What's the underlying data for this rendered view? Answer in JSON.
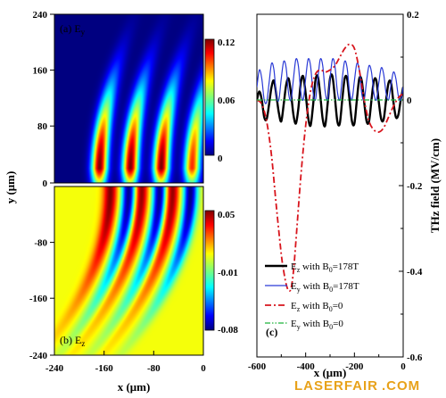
{
  "chart_data": [
    {
      "type": "heatmap",
      "label": "(a) E",
      "label_sub": "y",
      "xlim": [
        -240,
        0
      ],
      "ylim": [
        0,
        240
      ],
      "x_ticks": [
        "-240",
        "-160",
        "-80",
        "0"
      ],
      "y_ticks": [
        "240",
        "160",
        "80",
        "0"
      ],
      "colorbar_range": [
        0,
        0.12
      ],
      "colorbar_ticks": [
        "0.12",
        "0.06",
        "0"
      ],
      "colormap": "jet",
      "fringes": [
        {
          "x_center": -168,
          "peak_y": 20,
          "max": 0.12
        },
        {
          "x_center": -118,
          "peak_y": 20,
          "max": 0.12
        },
        {
          "x_center": -68,
          "peak_y": 20,
          "max": 0.12
        },
        {
          "x_center": -18,
          "peak_y": 20,
          "max": 0.1
        }
      ]
    },
    {
      "type": "heatmap",
      "label": "(b) E",
      "label_sub": "z",
      "xlim": [
        -240,
        0
      ],
      "ylim": [
        -240,
        0
      ],
      "x_ticks": [
        "-240",
        "-160",
        "-80",
        "0"
      ],
      "y_ticks": [
        "-80",
        "-160",
        "-240"
      ],
      "colorbar_range": [
        -0.08,
        0.05
      ],
      "colorbar_ticks": [
        "0.05",
        "-0.01",
        "-0.08"
      ],
      "colormap": "jet",
      "fringes": [
        {
          "x_center": -150,
          "sign": 1,
          "max": 0.05
        },
        {
          "x_center": -120,
          "sign": -1,
          "max": 0.08
        },
        {
          "x_center": -100,
          "sign": 1,
          "max": 0.05
        },
        {
          "x_center": -70,
          "sign": -1,
          "max": 0.08
        },
        {
          "x_center": -50,
          "sign": 1,
          "max": 0.05
        },
        {
          "x_center": -20,
          "sign": -1,
          "max": 0.08
        }
      ]
    },
    {
      "type": "line",
      "label": "(c)",
      "xlim": [
        -600,
        0
      ],
      "ylim": [
        -0.6,
        0.2
      ],
      "x_ticks": [
        "-600",
        "-400",
        "-200",
        "0"
      ],
      "y_ticks": [
        "0.2",
        "0",
        "-0.2",
        "-0.4",
        "-0.6"
      ],
      "series": [
        {
          "name": "E_z with B_0=178T",
          "legend": {
            "main": "E",
            "sub": "z",
            "mid": " with B",
            "sub2": "0",
            "tail": "=178T"
          },
          "color": "#000000",
          "style": "solid",
          "width": 2.4,
          "x": [
            -600,
            -590,
            -580,
            -570,
            -560,
            -550,
            -540,
            -530,
            -520,
            -510,
            -500,
            -490,
            -480,
            -470,
            -460,
            -450,
            -440,
            -430,
            -420,
            -410,
            -400,
            -390,
            -380,
            -370,
            -360,
            -350,
            -340,
            -330,
            -320,
            -310,
            -300,
            -290,
            -280,
            -270,
            -260,
            -250,
            -240,
            -230,
            -220,
            -210,
            -200,
            -190,
            -180,
            -170,
            -160,
            -150,
            -140,
            -130,
            -120,
            -110,
            -100,
            -90,
            -80,
            -70,
            -60,
            -50,
            -40,
            -30,
            -20,
            -10,
            0
          ],
          "y": [
            0.0,
            0.02,
            0.0,
            -0.04,
            -0.045,
            -0.01,
            0.03,
            0.045,
            0.01,
            -0.03,
            -0.05,
            -0.01,
            0.035,
            0.05,
            0.015,
            -0.035,
            -0.055,
            -0.02,
            0.04,
            0.055,
            0.015,
            -0.04,
            -0.06,
            -0.015,
            0.045,
            0.055,
            0.01,
            -0.045,
            -0.06,
            -0.01,
            0.05,
            0.055,
            0.005,
            -0.05,
            -0.055,
            0.0,
            0.05,
            0.05,
            0.0,
            -0.05,
            -0.055,
            0.0,
            0.05,
            0.045,
            -0.005,
            -0.05,
            -0.05,
            0.0,
            0.045,
            0.045,
            -0.005,
            -0.045,
            -0.045,
            0.0,
            0.04,
            0.04,
            -0.005,
            -0.04,
            -0.035,
            0.0,
            0.03
          ]
        },
        {
          "name": "E_y with B_0=178T",
          "legend": {
            "main": "E",
            "sub": "y",
            "mid": " with B",
            "sub2": "0",
            "tail": "=178T"
          },
          "color": "#2a3ad6",
          "style": "solid",
          "width": 1.2,
          "x": [
            -600,
            -590,
            -580,
            -570,
            -560,
            -550,
            -540,
            -530,
            -520,
            -510,
            -500,
            -490,
            -480,
            -470,
            -460,
            -450,
            -440,
            -430,
            -420,
            -410,
            -400,
            -390,
            -380,
            -370,
            -360,
            -350,
            -340,
            -330,
            -320,
            -310,
            -300,
            -290,
            -280,
            -270,
            -260,
            -250,
            -240,
            -230,
            -220,
            -210,
            -200,
            -190,
            -180,
            -170,
            -160,
            -150,
            -140,
            -130,
            -120,
            -110,
            -100,
            -90,
            -80,
            -70,
            -60,
            -50,
            -40,
            -30,
            -20,
            -10,
            0
          ],
          "y": [
            0.03,
            0.07,
            0.05,
            0.0,
            -0.005,
            0.04,
            0.085,
            0.07,
            0.01,
            0.0,
            0.05,
            0.09,
            0.075,
            0.015,
            0.0,
            0.05,
            0.095,
            0.08,
            0.02,
            0.0,
            0.05,
            0.095,
            0.08,
            0.02,
            0.0,
            0.05,
            0.095,
            0.08,
            0.02,
            0.0,
            0.05,
            0.095,
            0.08,
            0.02,
            0.0,
            0.05,
            0.09,
            0.075,
            0.02,
            0.0,
            0.045,
            0.085,
            0.07,
            0.015,
            0.0,
            0.045,
            0.08,
            0.065,
            0.015,
            0.0,
            0.04,
            0.075,
            0.06,
            0.015,
            0.0,
            0.035,
            0.065,
            0.05,
            0.01,
            0.0,
            0.03
          ]
        },
        {
          "name": "E_z with B_0=0",
          "legend": {
            "main": "E",
            "sub": "z",
            "mid": " with B",
            "sub2": "0",
            "tail": "=0"
          },
          "color": "#d8141c",
          "style": "dashdot",
          "width": 1.8,
          "x": [
            -600,
            -580,
            -560,
            -540,
            -520,
            -500,
            -490,
            -480,
            -470,
            -460,
            -450,
            -440,
            -420,
            -400,
            -380,
            -360,
            -340,
            -320,
            -300,
            -280,
            -260,
            -240,
            -220,
            -200,
            -180,
            -160,
            -140,
            -120,
            -100,
            -80,
            -60,
            -40,
            -20,
            0
          ],
          "y": [
            0.0,
            -0.01,
            -0.05,
            -0.13,
            -0.25,
            -0.36,
            -0.4,
            -0.43,
            -0.445,
            -0.44,
            -0.4,
            -0.33,
            -0.18,
            -0.06,
            0.02,
            0.06,
            0.07,
            0.065,
            0.07,
            0.08,
            0.1,
            0.12,
            0.13,
            0.12,
            0.07,
            0.0,
            -0.05,
            -0.07,
            -0.075,
            -0.065,
            -0.04,
            -0.015,
            0.005,
            0.015
          ]
        },
        {
          "name": "E_y with B_0=0",
          "legend": {
            "main": "E",
            "sub": "y",
            "mid": " with B",
            "sub2": "0",
            "tail": "=0"
          },
          "color": "#1eb53a",
          "style": "dashdotdot",
          "width": 1.2,
          "x": [
            -600,
            -500,
            -400,
            -300,
            -200,
            -100,
            0
          ],
          "y": [
            0.0,
            0.0,
            0.0,
            0.0,
            0.0,
            0.0,
            0.0
          ]
        }
      ]
    }
  ],
  "labels": {
    "x_left": "x (μm)",
    "x_right": "x (μm)",
    "y_left": "y (μm)",
    "y_right": "THz field (MV/cm)"
  },
  "watermark": "LASERFAIR",
  "watermark_suffix": ".COM"
}
